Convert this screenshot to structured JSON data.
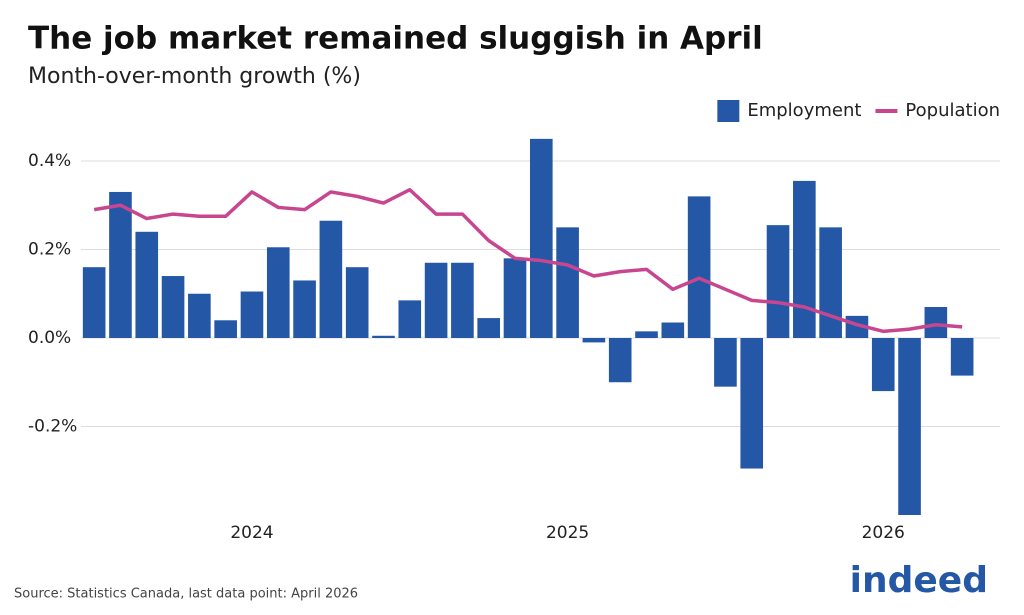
{
  "chart_data": {
    "type": "bar_line",
    "title": "The job market remained sluggish in April",
    "subtitle": "Month-over-month growth (%)",
    "source": "Source: Statistics Canada, last data point: April 2026",
    "brand": "indeed",
    "categories": [
      null,
      null,
      null,
      null,
      null,
      null,
      "2024",
      null,
      null,
      null,
      null,
      null,
      null,
      null,
      null,
      null,
      null,
      null,
      "2025",
      null,
      null,
      null,
      null,
      null,
      null,
      null,
      null,
      null,
      null,
      null,
      "2026",
      null,
      null,
      null
    ],
    "series": [
      {
        "name": "Employment",
        "type": "bar",
        "color": "#2557a7",
        "values": [
          0.16,
          0.33,
          0.24,
          0.14,
          0.1,
          0.04,
          0.105,
          0.205,
          0.13,
          0.265,
          0.16,
          0.005,
          0.085,
          0.17,
          0.17,
          0.045,
          0.18,
          0.45,
          0.25,
          -0.01,
          -0.1,
          0.015,
          0.035,
          0.32,
          -0.11,
          -0.295,
          0.255,
          0.355,
          0.25,
          0.05,
          -0.12,
          -0.4,
          0.07,
          -0.085
        ]
      },
      {
        "name": "Population",
        "type": "line",
        "color": "#c8468f",
        "values": [
          0.29,
          0.3,
          0.27,
          0.28,
          0.275,
          0.275,
          0.33,
          0.295,
          0.29,
          0.33,
          0.32,
          0.305,
          0.335,
          0.28,
          0.28,
          0.22,
          0.18,
          0.175,
          0.165,
          0.14,
          0.15,
          0.155,
          0.11,
          0.135,
          0.11,
          0.085,
          0.08,
          0.07,
          0.05,
          0.03,
          0.015,
          0.02,
          0.03,
          0.025
        ]
      }
    ],
    "ylim": [
      -0.4,
      0.47
    ],
    "yticks": [
      {
        "value": -0.2,
        "label": "-0.2%"
      },
      {
        "value": 0,
        "label": "0.0%"
      },
      {
        "value": 0.2,
        "label": "0.2%"
      },
      {
        "value": 0.4,
        "label": "0.4%"
      }
    ],
    "grid": true,
    "legend": "top-right"
  }
}
